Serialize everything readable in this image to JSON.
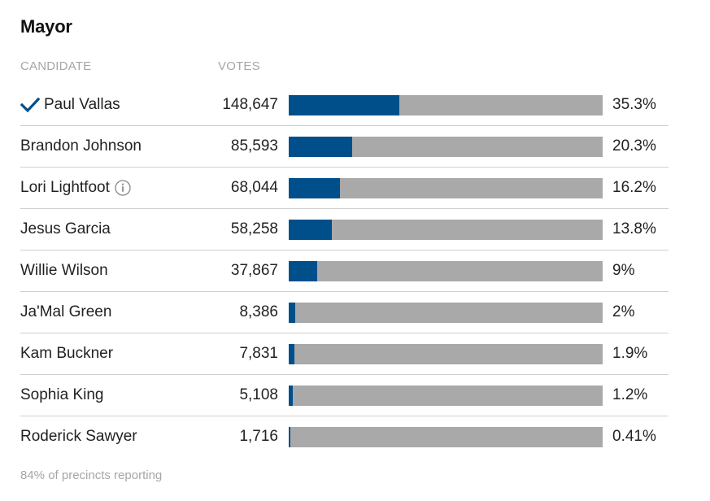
{
  "race": {
    "title": "Mayor",
    "columns": {
      "candidate": "CANDIDATE",
      "votes": "VOTES"
    },
    "footer": "84% of precincts reporting"
  },
  "colors": {
    "bar_fill": "#004f8b",
    "bar_track": "#a9a9a9",
    "checkmark": "#004f8b"
  },
  "chart_data": {
    "type": "bar",
    "orientation": "horizontal",
    "title": "Mayor",
    "categories": [
      "Paul Vallas",
      "Brandon Johnson",
      "Lori Lightfoot",
      "Jesus Garcia",
      "Willie Wilson",
      "Ja'Mal Green",
      "Kam Buckner",
      "Sophia King",
      "Roderick Sawyer"
    ],
    "votes_display": [
      "148,647",
      "85,593",
      "68,044",
      "58,258",
      "37,867",
      "8,386",
      "7,831",
      "5,108",
      "1,716"
    ],
    "pct_display": [
      "35.3%",
      "20.3%",
      "16.2%",
      "13.8%",
      "9%",
      "2%",
      "1.9%",
      "1.2%",
      "0.41%"
    ],
    "values": [
      35.3,
      20.3,
      16.2,
      13.8,
      9,
      2,
      1.9,
      1.2,
      0.41
    ],
    "xlim": [
      0,
      100
    ],
    "winner_index": 0,
    "info_icon_index": 2,
    "grid": false,
    "legend": "none"
  }
}
